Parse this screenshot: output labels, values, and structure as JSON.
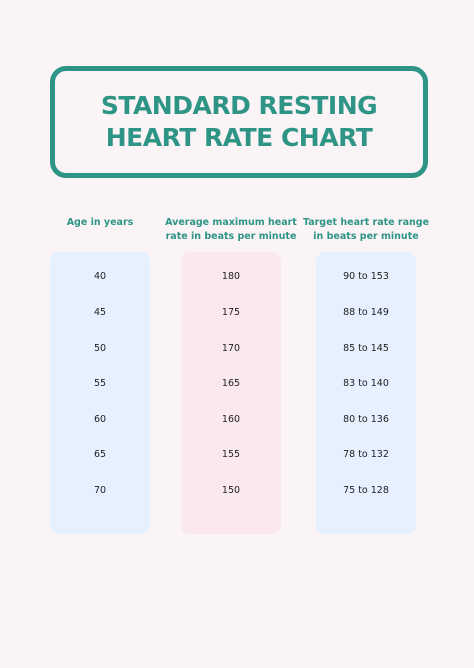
{
  "title": {
    "line1": "STANDARD RESTING",
    "line2": "HEART RATE CHART"
  },
  "headers": {
    "age": [
      "Age in years"
    ],
    "max": [
      "Average maximum heart",
      "rate in beats per minute"
    ],
    "target": [
      "Target heart rate range",
      "in beats per minute"
    ]
  },
  "table": {
    "age": [
      "40",
      "45",
      "50",
      "55",
      "60",
      "65",
      "70"
    ],
    "max": [
      "180",
      "175",
      "170",
      "165",
      "160",
      "155",
      "150"
    ],
    "target": [
      "90 to 153",
      "88 to 149",
      "85 to 145",
      "83 to 140",
      "80 to 136",
      "78 to 132",
      "75 to 128"
    ]
  },
  "colors": {
    "accent": "#2e9486",
    "background": "#fbf4f6",
    "blue_column": "#e6f0fe",
    "pink_column": "#fbe8ec"
  }
}
